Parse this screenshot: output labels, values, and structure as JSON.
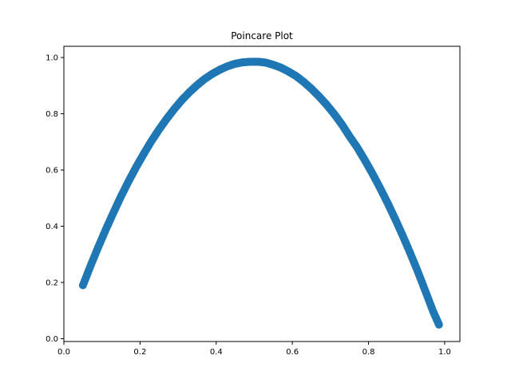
{
  "chart_data": {
    "type": "scatter",
    "title": "Poincare Plot",
    "xlabel": "",
    "ylabel": "",
    "xlim": [
      -0.0,
      1.04
    ],
    "ylim": [
      -0.01,
      1.04
    ],
    "x_ticks": [
      0.0,
      0.2,
      0.4,
      0.6,
      0.8,
      1.0
    ],
    "x_tick_labels": [
      "0.0",
      "0.2",
      "0.4",
      "0.6",
      "0.8",
      "1.0"
    ],
    "y_ticks": [
      0.0,
      0.2,
      0.4,
      0.6,
      0.8,
      1.0
    ],
    "y_tick_labels": [
      "0.0",
      "0.2",
      "0.4",
      "0.6",
      "0.8",
      "1.0"
    ],
    "grid": false,
    "legend": "none",
    "series_color": "#1f77b4",
    "series": [
      {
        "x": [
          0.05,
          0.07,
          0.09,
          0.11,
          0.13,
          0.15,
          0.17,
          0.19,
          0.21,
          0.23,
          0.25,
          0.27,
          0.29,
          0.31,
          0.33,
          0.35,
          0.37,
          0.39,
          0.41,
          0.43,
          0.45,
          0.47,
          0.49,
          0.51,
          0.53,
          0.55,
          0.57,
          0.59,
          0.61,
          0.63,
          0.65,
          0.67,
          0.69,
          0.71,
          0.73,
          0.75,
          0.77,
          0.79,
          0.81,
          0.83,
          0.85,
          0.87,
          0.89,
          0.91,
          0.93,
          0.95,
          0.97,
          0.985
        ],
        "y": [
          0.19,
          0.259,
          0.325,
          0.388,
          0.448,
          0.506,
          0.56,
          0.611,
          0.658,
          0.703,
          0.744,
          0.782,
          0.817,
          0.849,
          0.877,
          0.902,
          0.924,
          0.942,
          0.957,
          0.969,
          0.978,
          0.983,
          0.985,
          0.985,
          0.982,
          0.974,
          0.964,
          0.95,
          0.934,
          0.913,
          0.889,
          0.862,
          0.832,
          0.799,
          0.762,
          0.72,
          0.681,
          0.636,
          0.588,
          0.537,
          0.483,
          0.426,
          0.366,
          0.303,
          0.237,
          0.167,
          0.096,
          0.05
        ]
      }
    ]
  }
}
